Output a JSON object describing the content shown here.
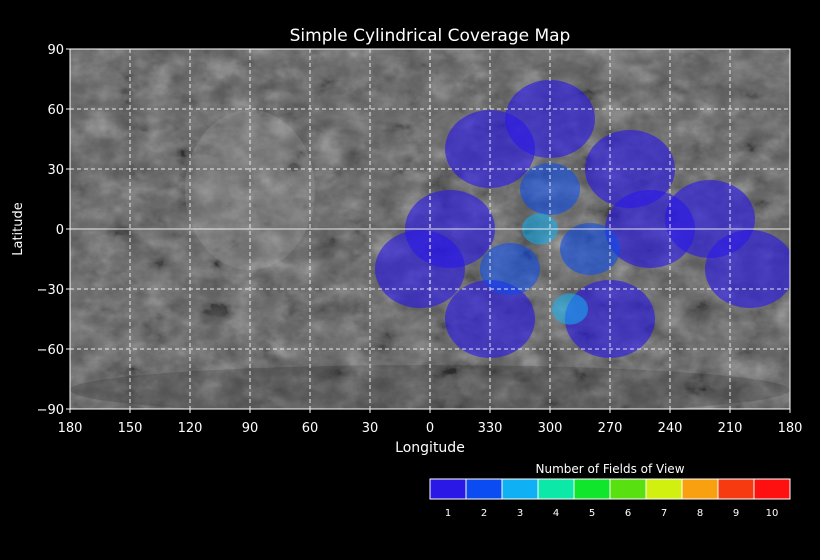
{
  "chart_data": {
    "type": "map",
    "title": "Simple Cylindrical Coverage Map",
    "xlabel": "Longitude",
    "ylabel": "Latitude",
    "x_tick_labels": [
      "180",
      "150",
      "120",
      "90",
      "60",
      "30",
      "0",
      "330",
      "300",
      "270",
      "240",
      "210",
      "180"
    ],
    "y_tick_values": [
      90,
      60,
      30,
      0,
      -30,
      -60,
      -90
    ],
    "y_tick_labels": [
      "90",
      "60",
      "30",
      "0",
      "−30",
      "−60",
      "−90"
    ],
    "lat_range": [
      -90,
      90
    ],
    "grid": true,
    "basemap": "grayscale planetary mosaic",
    "legend": {
      "title": "Number of Fields of View",
      "placement": "bottom-right",
      "labels": [
        "1",
        "2",
        "3",
        "4",
        "5",
        "6",
        "7",
        "8",
        "9",
        "10"
      ],
      "colors": [
        "#2a18e6",
        "#0a4cf2",
        "#10b0f4",
        "#0ce8a8",
        "#10e62c",
        "#58e010",
        "#d2f010",
        "#f8a010",
        "#f83a10",
        "#ff1010"
      ]
    },
    "coverage": [
      {
        "level": 1,
        "lon": 300,
        "lat": 55
      },
      {
        "level": 1,
        "lon": 330,
        "lat": 40
      },
      {
        "level": 1,
        "lon": 260,
        "lat": 30
      },
      {
        "level": 1,
        "lon": 350,
        "lat": 0
      },
      {
        "level": 1,
        "lon": 250,
        "lat": 0
      },
      {
        "level": 1,
        "lon": 220,
        "lat": 5
      },
      {
        "level": 1,
        "lon": 5,
        "lat": -20
      },
      {
        "level": 1,
        "lon": 200,
        "lat": -20
      },
      {
        "level": 1,
        "lon": 330,
        "lat": -45
      },
      {
        "level": 1,
        "lon": 270,
        "lat": -45
      },
      {
        "level": 2,
        "lon": 300,
        "lat": 20
      },
      {
        "level": 2,
        "lon": 280,
        "lat": -10
      },
      {
        "level": 2,
        "lon": 320,
        "lat": -20
      },
      {
        "level": 3,
        "lon": 305,
        "lat": 0
      },
      {
        "level": 3,
        "lon": 290,
        "lat": -40
      }
    ]
  }
}
